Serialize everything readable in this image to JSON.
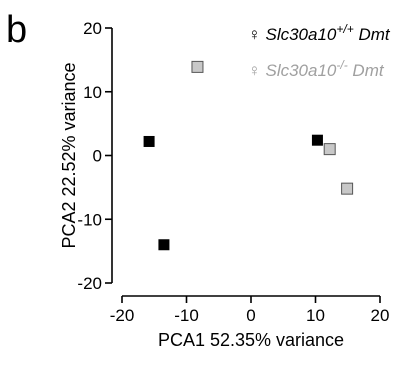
{
  "panel_label": "b",
  "colors": {
    "wt": "#000000",
    "ko_fill": "#c8c8c8",
    "ko_edge": "#555555",
    "ko_text": "#a0a0a0",
    "axis": "#000000"
  },
  "legend": [
    {
      "symbol": "♀",
      "gene": "Slc30a10",
      "genotype": "+/+",
      "suffix": " Dmt",
      "color_key": "wt"
    },
    {
      "symbol": "♀",
      "gene": "Slc30a10",
      "genotype": "-/-",
      "suffix": " Dmt",
      "color_key": "ko_text"
    }
  ],
  "chart_data": {
    "type": "scatter",
    "title": "",
    "xlabel": "PCA1 52.35% variance",
    "ylabel": "PCA2 22.52% variance",
    "xlim": [
      -20,
      20
    ],
    "ylim": [
      -20,
      20
    ],
    "xticks": [
      -20,
      -10,
      0,
      10,
      20
    ],
    "yticks": [
      -20,
      -10,
      0,
      10,
      20
    ],
    "grid": false,
    "legend_position": "top-right",
    "series": [
      {
        "key": "wt",
        "name": "♀ Slc30a10+/+ Dmt",
        "marker": "square",
        "points": [
          [
            -15.8,
            2.2
          ],
          [
            -13.5,
            -14.0
          ],
          [
            10.3,
            2.4
          ]
        ]
      },
      {
        "key": "ko",
        "name": "♀ Slc30a10-/- Dmt",
        "marker": "square",
        "points": [
          [
            -8.3,
            13.9
          ],
          [
            12.2,
            1.0
          ],
          [
            14.9,
            -5.2
          ]
        ]
      }
    ]
  }
}
